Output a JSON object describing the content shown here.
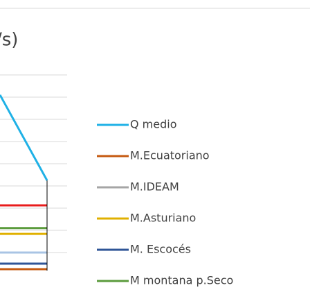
{
  "chart_data": {
    "type": "line",
    "title": "/s)",
    "categories": [
      null,
      null
    ],
    "ylim": [
      0,
      9
    ],
    "yticks": [
      1,
      2,
      3,
      4,
      5,
      6,
      7,
      8,
      9
    ],
    "grid": true,
    "series": [
      {
        "name": "Q medio",
        "color": "#1fb1e6",
        "values": [
          8.1,
          4.25
        ]
      },
      {
        "name": "M.Ecuatoriano",
        "color": "#c55a11",
        "values": [
          0.25,
          0.25
        ]
      },
      {
        "name": "M.IDEAM",
        "color": "#a5a5a5",
        "values": [
          null,
          null
        ]
      },
      {
        "name": "M.Asturiano",
        "color": "#e0b000",
        "values": [
          1.84,
          1.84
        ]
      },
      {
        "name": "M. Escocés",
        "color": "#2f5597",
        "values": [
          0.5,
          0.5
        ]
      },
      {
        "name": "M montana p.Seco",
        "color": "#5b9b3c",
        "values": [
          2.1,
          2.1
        ]
      },
      {
        "color": "#e81c1c",
        "values": [
          3.125,
          3.125
        ]
      },
      {
        "color": "#a9c4e4",
        "values": [
          1.0,
          1.0
        ]
      }
    ]
  }
}
